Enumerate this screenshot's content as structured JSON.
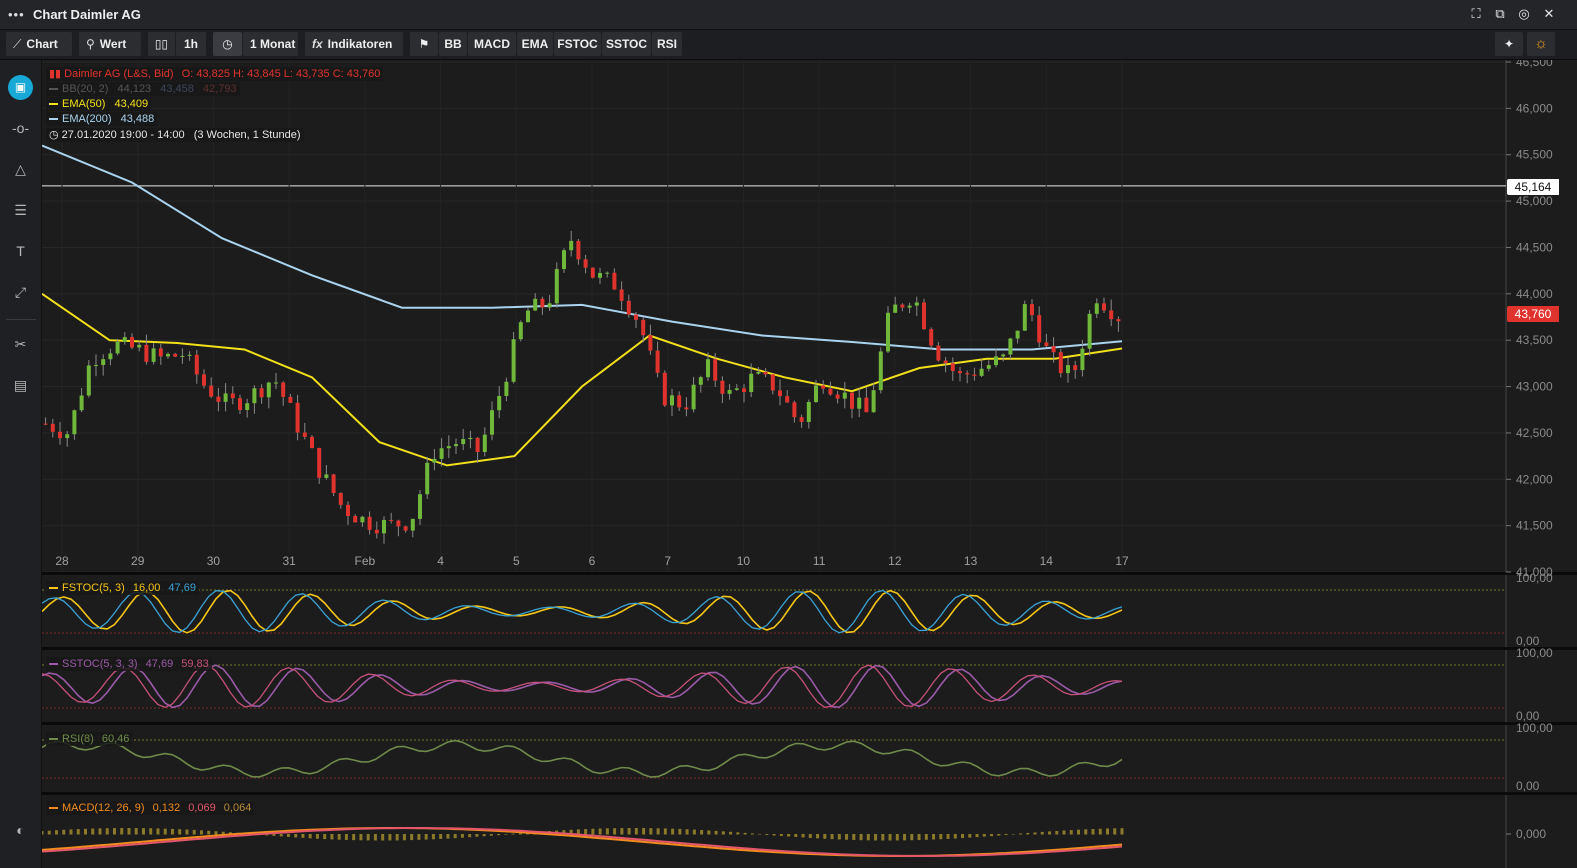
{
  "window": {
    "title": "Chart Daimler AG",
    "menu_icon": "dots-icon"
  },
  "window_controls": [
    "maximize-icon",
    "detach-icon",
    "settings-circle-icon",
    "close-icon"
  ],
  "toolbar": {
    "chart_label": "Chart",
    "wert_label": "Wert",
    "interval_label": "1h",
    "period_label": "1 Monat",
    "indicators_label": "Indikatoren",
    "indicator_buttons": [
      "BB",
      "MACD",
      "EMA",
      "FSTOC",
      "SSTOC",
      "RSI"
    ]
  },
  "legend": {
    "instrument": "Daimler AG (L&S, Bid)",
    "ohlc": "O: 43,825  H: 43,845  L: 43,735  C: 43,760",
    "bb": {
      "label": "BB(20, 2)",
      "v1": "44,123",
      "v2": "43,458",
      "v3": "42,793"
    },
    "ema50": {
      "label": "EMA(50)",
      "value": "43,409"
    },
    "ema200": {
      "label": "EMA(200)",
      "value": "43,488"
    },
    "range": "27.01.2020 19:00 - 14:00",
    "range_desc": "(3 Wochen, 1 Stunde)"
  },
  "price_axis": {
    "ticks": [
      "46,500",
      "46,000",
      "45,500",
      "45,000",
      "44,500",
      "44,000",
      "43,500",
      "43,000",
      "42,500",
      "42,000",
      "41,500",
      "41,000"
    ],
    "hline_label": "45,164",
    "last_label": "43,760"
  },
  "x_axis": {
    "ticks": [
      "28",
      "29",
      "30",
      "31",
      "Feb",
      "4",
      "5",
      "6",
      "7",
      "10",
      "11",
      "12",
      "13",
      "14",
      "17"
    ]
  },
  "panels": {
    "fstoc": {
      "label": "FSTOC(5, 3)",
      "v1": "16,00",
      "v2": "47,69",
      "top": "100,00",
      "bottom": "0,00"
    },
    "sstoc": {
      "label": "SSTOC(5, 3, 3)",
      "v1": "47,69",
      "v2": "59,83",
      "top": "100,00",
      "bottom": "0,00"
    },
    "rsi": {
      "label": "RSI(8)",
      "v1": "60,46",
      "top": "100,00",
      "bottom": "0,00"
    },
    "macd": {
      "label": "MACD(12, 26, 9)",
      "v1": "0,132",
      "v2": "0,069",
      "v3": "0,064",
      "zero": "0,000"
    }
  },
  "colors": {
    "up": "#6fb83a",
    "down": "#e0332d",
    "ema50": "#f2e01a",
    "ema200": "#a9d3ee",
    "fstoc_k": "#f5c518",
    "fstoc_d": "#3aa3d6",
    "sstoc": "#9a5aa8",
    "rsi": "#6f8a4a",
    "macd": "#f28c1f",
    "signal": "#e3566b",
    "accent": "#19a9d6",
    "sun": "#f6a623"
  },
  "chart_data": {
    "type": "candlestick",
    "title": "Daimler AG (L&S, Bid)",
    "y_range": [
      41.0,
      46.5
    ],
    "day_labels": [
      "28",
      "29",
      "30",
      "31",
      "Feb",
      "4",
      "5",
      "6",
      "7",
      "10",
      "11",
      "12",
      "13",
      "14",
      "17"
    ],
    "close_path": [
      42.6,
      42.5,
      43.3,
      43.45,
      43.4,
      43.3,
      43.35,
      43.0,
      42.8,
      42.9,
      43.1,
      42.6,
      42.1,
      41.7,
      41.55,
      41.5,
      41.55,
      42.3,
      42.4,
      42.3,
      43.0,
      43.8,
      43.9,
      44.6,
      44.2,
      44.1,
      43.7,
      42.9,
      42.8,
      43.2,
      42.9,
      43.1,
      43.0,
      42.6,
      43.1,
      42.9,
      42.7,
      43.8,
      44.0,
      43.4,
      43.1,
      43.2,
      43.3,
      43.9,
      43.3,
      43.1,
      44.0,
      43.76
    ],
    "ema50": {
      "name": "EMA(50)",
      "value": 43.409,
      "path": [
        44.0,
        43.5,
        43.47,
        43.4,
        43.1,
        42.4,
        42.15,
        42.25,
        43.0,
        43.55,
        43.3,
        43.1,
        42.95,
        43.2,
        43.3,
        43.3,
        43.41
      ]
    },
    "ema200": {
      "name": "EMA(200)",
      "value": 43.488,
      "path": [
        45.6,
        45.2,
        44.6,
        44.2,
        43.85,
        43.85,
        43.88,
        43.7,
        43.55,
        43.48,
        43.4,
        43.4,
        43.488
      ]
    },
    "hline": 45.164,
    "last": 43.76
  }
}
